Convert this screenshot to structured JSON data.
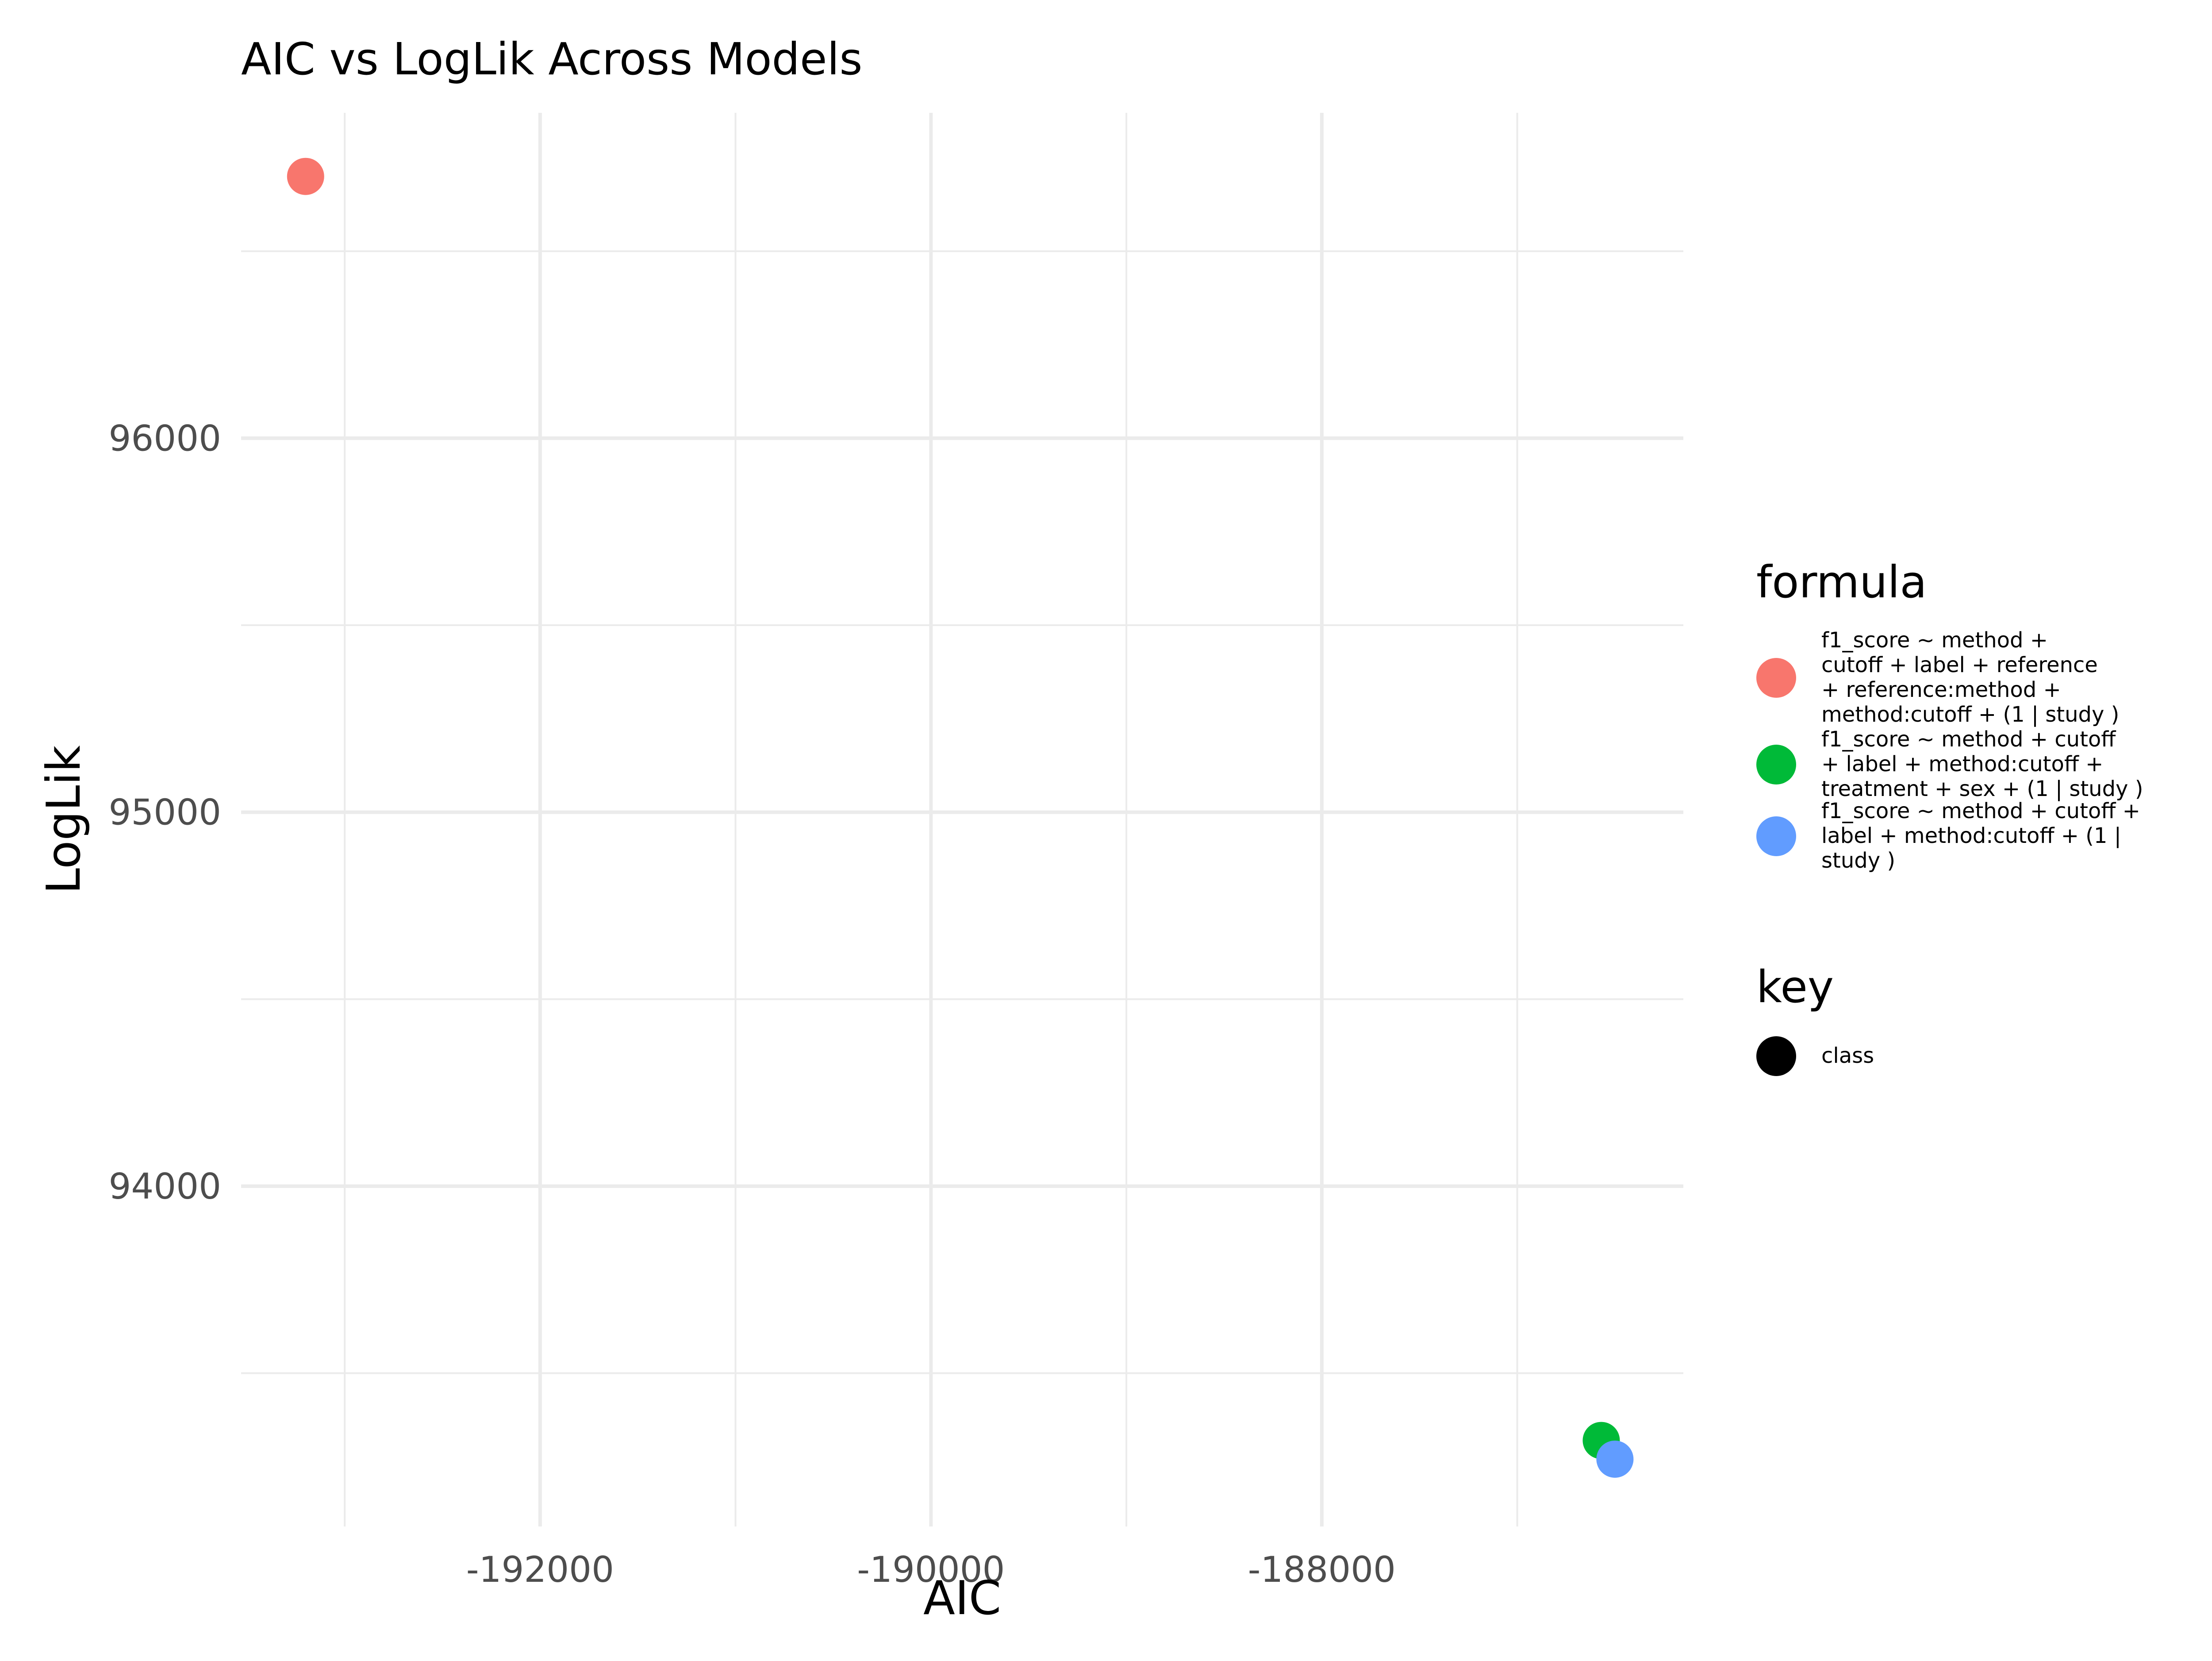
{
  "chart_data": {
    "type": "scatter",
    "title": "AIC vs LogLik Across Models",
    "xlabel": "AIC",
    "ylabel": "LogLik",
    "xlim": [
      -193530,
      -186150
    ],
    "ylim": [
      93090,
      96870
    ],
    "x_ticks": [
      -192000,
      -190000,
      -188000
    ],
    "x_tick_labels": [
      "-192000",
      "-190000",
      "-188000"
    ],
    "x_minor_ticks": [
      -193000,
      -191000,
      -189000,
      -187000
    ],
    "y_ticks": [
      94000,
      95000,
      96000
    ],
    "y_tick_labels": [
      "94000",
      "95000",
      "96000"
    ],
    "y_minor_ticks": [
      93500,
      94500,
      95500,
      96500
    ],
    "grid": true,
    "legend_position": "right",
    "series": [
      {
        "name": "f1_score ~ method + cutoff + label + reference + reference:method + method:cutoff + (1 | study )",
        "color": "#F8766D",
        "key": "class",
        "points": [
          {
            "x": -193200,
            "y": 96700
          }
        ]
      },
      {
        "name": "f1_score ~ method + cutoff + label + method:cutoff + treatment + sex + (1 | study )",
        "color": "#00BA38",
        "key": "class",
        "points": [
          {
            "x": -186570,
            "y": 93320
          }
        ]
      },
      {
        "name": "f1_score ~ method + cutoff + label + method:cutoff + (1 | study )",
        "color": "#619CFF",
        "key": "class",
        "points": [
          {
            "x": -186500,
            "y": 93270
          }
        ]
      }
    ],
    "legends": [
      {
        "title": "formula",
        "entries": [
          {
            "color": "#F8766D",
            "lines": [
              "f1_score ~ method +",
              "cutoff + label + reference",
              "+ reference:method +",
              "method:cutoff + (1 | study )"
            ]
          },
          {
            "color": "#00BA38",
            "lines": [
              "f1_score ~ method + cutoff",
              "+ label + method:cutoff +",
              "treatment + sex + (1 | study )"
            ]
          },
          {
            "color": "#619CFF",
            "lines": [
              "f1_score ~ method + cutoff +",
              "label + method:cutoff + (1 |",
              "study )"
            ]
          }
        ]
      },
      {
        "title": "key",
        "entries": [
          {
            "color": "#000000",
            "lines": [
              "class"
            ]
          }
        ]
      }
    ]
  }
}
